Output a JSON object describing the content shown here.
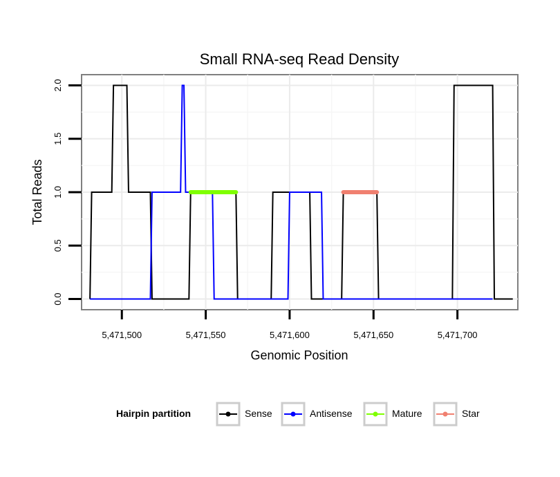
{
  "chart_data": {
    "type": "line",
    "title": "Small RNA-seq Read Density",
    "xlabel": "Genomic Position",
    "ylabel": "Total Reads",
    "xlim": [
      5471476,
      5471736
    ],
    "ylim": [
      -0.1,
      2.1
    ],
    "x_ticks": [
      5471500,
      5471550,
      5471600,
      5471650,
      5471700
    ],
    "x_tick_labels": [
      "5,471,500",
      "5,471,550",
      "5,471,600",
      "5,471,650",
      "5,471,700"
    ],
    "y_ticks": [
      0,
      0.5,
      1,
      1.5,
      2
    ],
    "y_tick_labels": [
      "0.0",
      "0.5",
      "1.0",
      "1.5",
      "2.0"
    ],
    "grid": true,
    "legend": {
      "title": "Hairpin partition",
      "position": "bottom",
      "entries": [
        "Sense",
        "Antisense",
        "Mature",
        "Star"
      ]
    },
    "series": [
      {
        "name": "Sense",
        "color": "#000000",
        "x": [
          5471481,
          5471482,
          5471494,
          5471495,
          5471503,
          5471504,
          5471517,
          5471518,
          5471540,
          5471541,
          5471568,
          5471569,
          5471589,
          5471590,
          5471599,
          5471600,
          5471607,
          5471608,
          5471612,
          5471613,
          5471631,
          5471632,
          5471652,
          5471653,
          5471697,
          5471698,
          5471721,
          5471722,
          5471733
        ],
        "y": [
          0,
          1,
          1,
          2,
          2,
          1,
          1,
          0,
          0,
          1,
          1,
          0,
          0,
          1,
          1,
          1,
          1,
          1,
          1,
          0,
          0,
          1,
          1,
          0,
          0,
          2,
          2,
          0,
          0
        ]
      },
      {
        "name": "Antisense",
        "color": "#0000ff",
        "x": [
          5471481,
          5471517,
          5471518,
          5471535,
          5471536,
          5471537,
          5471538,
          5471554,
          5471555,
          5471588,
          5471589,
          5471599,
          5471600,
          5471619,
          5471620,
          5471721
        ],
        "y": [
          0,
          0,
          1,
          1,
          2,
          2,
          1,
          1,
          0,
          0,
          0,
          0,
          1,
          1,
          0,
          0
        ]
      },
      {
        "name": "Mature",
        "color": "#7fff00",
        "x": [
          5471541,
          5471568
        ],
        "y": [
          1,
          1
        ]
      },
      {
        "name": "Star",
        "color": "#f08070",
        "x": [
          5471632,
          5471652
        ],
        "y": [
          1,
          1
        ]
      }
    ]
  }
}
